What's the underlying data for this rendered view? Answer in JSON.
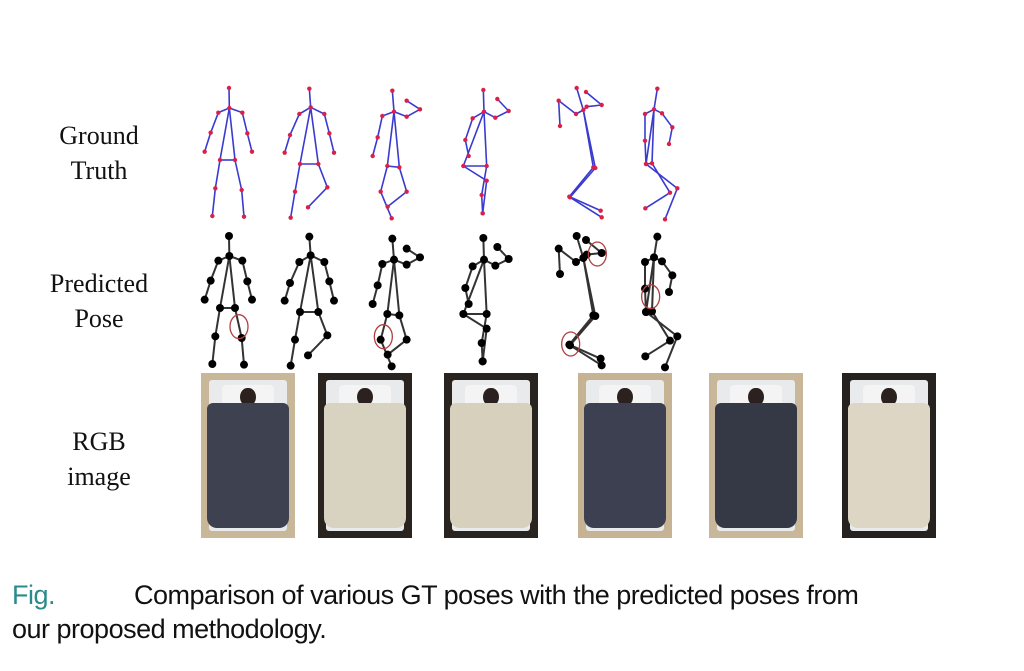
{
  "row_labels": {
    "ground_truth": [
      "Ground",
      "Truth"
    ],
    "predicted": [
      "Predicted",
      "Pose"
    ],
    "rgb": [
      "RGB",
      "image"
    ]
  },
  "caption": {
    "fig_label": "Fig.",
    "line1": "Comparison of various GT poses with the predicted poses from",
    "line2": "our proposed methodology."
  },
  "colors": {
    "gt_limb": "#3a3ad0",
    "gt_joint": "#d8204a",
    "pred_limb": "#333333",
    "pred_joint": "#000000",
    "error_circle": "#b04040",
    "fig_label": "#2b8a8a"
  },
  "samples": [
    {
      "blanket": "#3e4250",
      "floor": "#c9b79a",
      "error_joints": 1
    },
    {
      "blanket": "#d8d2c0",
      "floor": "#2a2420",
      "error_joints": 0
    },
    {
      "blanket": "#d6d0bd",
      "floor": "#2a2420",
      "error_joints": 1
    },
    {
      "blanket": "#3c4050",
      "floor": "#c6b393",
      "error_joints": 0
    },
    {
      "blanket": "#353946",
      "floor": "#c9b79a",
      "error_joints": 2
    },
    {
      "blanket": "#ddd6c4",
      "floor": "#252220",
      "error_joints": 1
    }
  ]
}
